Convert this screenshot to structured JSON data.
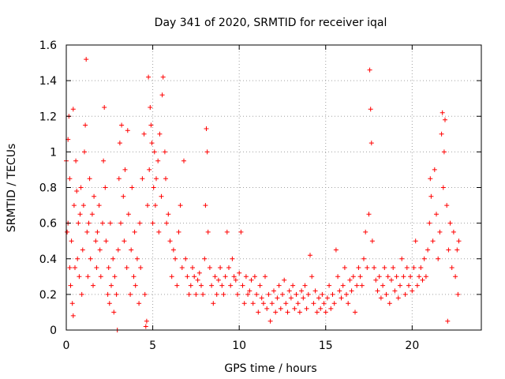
{
  "chart_data": {
    "type": "scatter",
    "title": "Day 341 of 2020, SRMTID for receiver iqal",
    "xlabel": "GPS time / hours",
    "ylabel": "SRMTID / TECUs",
    "xlim": [
      0,
      24
    ],
    "ylim": [
      0,
      1.6
    ],
    "xticks": [
      0,
      5,
      10,
      15,
      20
    ],
    "xtick_labels": [
      "0",
      "5",
      "10",
      "15",
      "20"
    ],
    "yticks": [
      0,
      0.2,
      0.4,
      0.6,
      0.8,
      1.0,
      1.2,
      1.4,
      1.6
    ],
    "ytick_labels": [
      "0",
      "0.2",
      "0.4",
      "0.6",
      "0.8",
      "1",
      "1.2",
      "1.4",
      "1.6"
    ],
    "grid": true,
    "marker": "+",
    "color": "#ff0000",
    "series": [
      {
        "name": "SRMTID",
        "points": [
          [
            0.0,
            0.95
          ],
          [
            0.05,
            0.55
          ],
          [
            0.1,
            0.6
          ],
          [
            0.1,
            1.07
          ],
          [
            0.15,
            1.2
          ],
          [
            0.2,
            0.35
          ],
          [
            0.2,
            0.85
          ],
          [
            0.25,
            0.25
          ],
          [
            0.3,
            0.5
          ],
          [
            0.35,
            0.15
          ],
          [
            0.4,
            1.24
          ],
          [
            0.4,
            0.08
          ],
          [
            0.45,
            0.7
          ],
          [
            0.5,
            0.35
          ],
          [
            0.55,
            0.95
          ],
          [
            0.6,
            0.78
          ],
          [
            0.65,
            0.4
          ],
          [
            0.7,
            0.6
          ],
          [
            0.75,
            0.3
          ],
          [
            0.8,
            0.65
          ],
          [
            0.85,
            0.8
          ],
          [
            0.9,
            0.2
          ],
          [
            0.95,
            0.45
          ],
          [
            1.0,
            0.7
          ],
          [
            1.05,
            1.0
          ],
          [
            1.1,
            1.15
          ],
          [
            1.15,
            1.52
          ],
          [
            1.2,
            0.55
          ],
          [
            1.25,
            0.3
          ],
          [
            1.3,
            0.6
          ],
          [
            1.35,
            0.85
          ],
          [
            1.4,
            0.4
          ],
          [
            1.5,
            0.65
          ],
          [
            1.55,
            0.25
          ],
          [
            1.6,
            0.75
          ],
          [
            1.7,
            0.5
          ],
          [
            1.75,
            0.35
          ],
          [
            1.8,
            0.55
          ],
          [
            1.9,
            0.7
          ],
          [
            1.95,
            0.45
          ],
          [
            2.0,
            0.3
          ],
          [
            2.1,
            0.6
          ],
          [
            2.15,
            0.95
          ],
          [
            2.2,
            1.25
          ],
          [
            2.25,
            0.8
          ],
          [
            2.3,
            0.5
          ],
          [
            2.4,
            0.2
          ],
          [
            2.45,
            0.35
          ],
          [
            2.5,
            0.15
          ],
          [
            2.55,
            0.6
          ],
          [
            2.6,
            0.25
          ],
          [
            2.7,
            0.4
          ],
          [
            2.75,
            0.1
          ],
          [
            2.8,
            0.3
          ],
          [
            2.9,
            0.2
          ],
          [
            2.95,
            0.0
          ],
          [
            3.0,
            0.45
          ],
          [
            3.05,
            0.85
          ],
          [
            3.1,
            1.05
          ],
          [
            3.15,
            0.6
          ],
          [
            3.2,
            1.15
          ],
          [
            3.3,
            0.75
          ],
          [
            3.35,
            0.5
          ],
          [
            3.4,
            0.9
          ],
          [
            3.5,
            0.35
          ],
          [
            3.55,
            1.12
          ],
          [
            3.6,
            0.65
          ],
          [
            3.7,
            0.2
          ],
          [
            3.75,
            0.45
          ],
          [
            3.8,
            0.8
          ],
          [
            3.9,
            0.3
          ],
          [
            3.95,
            0.55
          ],
          [
            4.0,
            0.25
          ],
          [
            4.1,
            0.4
          ],
          [
            4.2,
            0.15
          ],
          [
            4.25,
            0.6
          ],
          [
            4.3,
            0.35
          ],
          [
            4.4,
            0.85
          ],
          [
            4.5,
            1.1
          ],
          [
            4.55,
            0.2
          ],
          [
            4.6,
            0.02
          ],
          [
            4.65,
            0.05
          ],
          [
            4.7,
            0.7
          ],
          [
            4.75,
            1.42
          ],
          [
            4.8,
            0.9
          ],
          [
            4.85,
            1.25
          ],
          [
            4.9,
            1.15
          ],
          [
            4.95,
            1.05
          ],
          [
            5.0,
            0.6
          ],
          [
            5.05,
            0.8
          ],
          [
            5.1,
            1.0
          ],
          [
            5.15,
            0.7
          ],
          [
            5.2,
            0.85
          ],
          [
            5.3,
            0.95
          ],
          [
            5.35,
            0.55
          ],
          [
            5.4,
            1.1
          ],
          [
            5.5,
            0.75
          ],
          [
            5.55,
            1.32
          ],
          [
            5.6,
            1.42
          ],
          [
            5.7,
            1.0
          ],
          [
            5.75,
            0.85
          ],
          [
            5.8,
            0.6
          ],
          [
            5.9,
            0.65
          ],
          [
            6.0,
            0.5
          ],
          [
            6.1,
            0.3
          ],
          [
            6.2,
            0.45
          ],
          [
            6.3,
            0.4
          ],
          [
            6.4,
            0.25
          ],
          [
            6.5,
            0.55
          ],
          [
            6.6,
            0.7
          ],
          [
            6.7,
            0.35
          ],
          [
            6.8,
            0.95
          ],
          [
            6.9,
            0.4
          ],
          [
            7.0,
            0.3
          ],
          [
            7.1,
            0.2
          ],
          [
            7.2,
            0.25
          ],
          [
            7.3,
            0.35
          ],
          [
            7.4,
            0.3
          ],
          [
            7.5,
            0.2
          ],
          [
            7.6,
            0.28
          ],
          [
            7.7,
            0.32
          ],
          [
            7.8,
            0.25
          ],
          [
            7.9,
            0.2
          ],
          [
            8.0,
            0.4
          ],
          [
            8.05,
            0.7
          ],
          [
            8.1,
            1.13
          ],
          [
            8.15,
            1.0
          ],
          [
            8.2,
            0.55
          ],
          [
            8.3,
            0.35
          ],
          [
            8.4,
            0.25
          ],
          [
            8.5,
            0.15
          ],
          [
            8.6,
            0.3
          ],
          [
            8.7,
            0.2
          ],
          [
            8.8,
            0.28
          ],
          [
            8.9,
            0.35
          ],
          [
            9.0,
            0.25
          ],
          [
            9.1,
            0.2
          ],
          [
            9.2,
            0.3
          ],
          [
            9.3,
            0.55
          ],
          [
            9.4,
            0.35
          ],
          [
            9.5,
            0.25
          ],
          [
            9.6,
            0.4
          ],
          [
            9.7,
            0.3
          ],
          [
            9.8,
            0.28
          ],
          [
            9.9,
            0.2
          ],
          [
            10.0,
            0.32
          ],
          [
            10.1,
            0.55
          ],
          [
            10.2,
            0.25
          ],
          [
            10.3,
            0.15
          ],
          [
            10.4,
            0.3
          ],
          [
            10.5,
            0.2
          ],
          [
            10.6,
            0.22
          ],
          [
            10.7,
            0.28
          ],
          [
            10.8,
            0.15
          ],
          [
            10.9,
            0.3
          ],
          [
            11.0,
            0.2
          ],
          [
            11.1,
            0.1
          ],
          [
            11.2,
            0.25
          ],
          [
            11.3,
            0.18
          ],
          [
            11.4,
            0.15
          ],
          [
            11.5,
            0.3
          ],
          [
            11.6,
            0.12
          ],
          [
            11.7,
            0.2
          ],
          [
            11.8,
            0.05
          ],
          [
            11.9,
            0.15
          ],
          [
            12.0,
            0.22
          ],
          [
            12.1,
            0.1
          ],
          [
            12.2,
            0.18
          ],
          [
            12.3,
            0.25
          ],
          [
            12.4,
            0.12
          ],
          [
            12.5,
            0.2
          ],
          [
            12.6,
            0.28
          ],
          [
            12.7,
            0.15
          ],
          [
            12.8,
            0.1
          ],
          [
            12.9,
            0.22
          ],
          [
            13.0,
            0.18
          ],
          [
            13.1,
            0.25
          ],
          [
            13.2,
            0.12
          ],
          [
            13.3,
            0.2
          ],
          [
            13.4,
            0.15
          ],
          [
            13.5,
            0.1
          ],
          [
            13.6,
            0.22
          ],
          [
            13.7,
            0.18
          ],
          [
            13.8,
            0.25
          ],
          [
            13.9,
            0.12
          ],
          [
            14.0,
            0.2
          ],
          [
            14.1,
            0.42
          ],
          [
            14.2,
            0.3
          ],
          [
            14.3,
            0.15
          ],
          [
            14.4,
            0.22
          ],
          [
            14.5,
            0.1
          ],
          [
            14.6,
            0.18
          ],
          [
            14.7,
            0.12
          ],
          [
            14.8,
            0.2
          ],
          [
            14.9,
            0.15
          ],
          [
            15.0,
            0.1
          ],
          [
            15.1,
            0.18
          ],
          [
            15.2,
            0.25
          ],
          [
            15.3,
            0.12
          ],
          [
            15.4,
            0.2
          ],
          [
            15.5,
            0.15
          ],
          [
            15.6,
            0.45
          ],
          [
            15.7,
            0.3
          ],
          [
            15.8,
            0.22
          ],
          [
            15.9,
            0.18
          ],
          [
            16.0,
            0.25
          ],
          [
            16.1,
            0.35
          ],
          [
            16.2,
            0.2
          ],
          [
            16.3,
            0.15
          ],
          [
            16.4,
            0.28
          ],
          [
            16.5,
            0.22
          ],
          [
            16.6,
            0.3
          ],
          [
            16.7,
            0.1
          ],
          [
            16.8,
            0.25
          ],
          [
            16.9,
            0.35
          ],
          [
            17.0,
            0.3
          ],
          [
            17.1,
            0.25
          ],
          [
            17.2,
            0.4
          ],
          [
            17.3,
            0.55
          ],
          [
            17.4,
            0.35
          ],
          [
            17.5,
            0.65
          ],
          [
            17.55,
            1.46
          ],
          [
            17.6,
            1.24
          ],
          [
            17.65,
            1.05
          ],
          [
            17.7,
            0.5
          ],
          [
            17.8,
            0.35
          ],
          [
            17.9,
            0.28
          ],
          [
            18.0,
            0.22
          ],
          [
            18.1,
            0.3
          ],
          [
            18.2,
            0.18
          ],
          [
            18.3,
            0.25
          ],
          [
            18.4,
            0.35
          ],
          [
            18.5,
            0.2
          ],
          [
            18.6,
            0.3
          ],
          [
            18.7,
            0.15
          ],
          [
            18.8,
            0.28
          ],
          [
            18.9,
            0.35
          ],
          [
            19.0,
            0.22
          ],
          [
            19.1,
            0.3
          ],
          [
            19.2,
            0.18
          ],
          [
            19.3,
            0.25
          ],
          [
            19.4,
            0.4
          ],
          [
            19.5,
            0.3
          ],
          [
            19.6,
            0.2
          ],
          [
            19.7,
            0.35
          ],
          [
            19.8,
            0.25
          ],
          [
            19.9,
            0.3
          ],
          [
            20.0,
            0.22
          ],
          [
            20.1,
            0.35
          ],
          [
            20.2,
            0.5
          ],
          [
            20.3,
            0.25
          ],
          [
            20.4,
            0.3
          ],
          [
            20.5,
            0.35
          ],
          [
            20.6,
            0.28
          ],
          [
            20.7,
            0.4
          ],
          [
            20.8,
            0.3
          ],
          [
            20.9,
            0.45
          ],
          [
            21.0,
            0.6
          ],
          [
            21.05,
            0.85
          ],
          [
            21.1,
            0.75
          ],
          [
            21.2,
            0.5
          ],
          [
            21.3,
            0.9
          ],
          [
            21.4,
            0.65
          ],
          [
            21.5,
            0.4
          ],
          [
            21.6,
            0.55
          ],
          [
            21.7,
            1.1
          ],
          [
            21.75,
            1.22
          ],
          [
            21.8,
            0.8
          ],
          [
            21.85,
            1.0
          ],
          [
            21.9,
            1.18
          ],
          [
            22.0,
            0.7
          ],
          [
            22.05,
            0.05
          ],
          [
            22.1,
            0.45
          ],
          [
            22.2,
            0.6
          ],
          [
            22.3,
            0.35
          ],
          [
            22.4,
            0.55
          ],
          [
            22.5,
            0.3
          ],
          [
            22.6,
            0.45
          ],
          [
            22.65,
            0.2
          ],
          [
            22.7,
            0.5
          ]
        ]
      }
    ]
  }
}
